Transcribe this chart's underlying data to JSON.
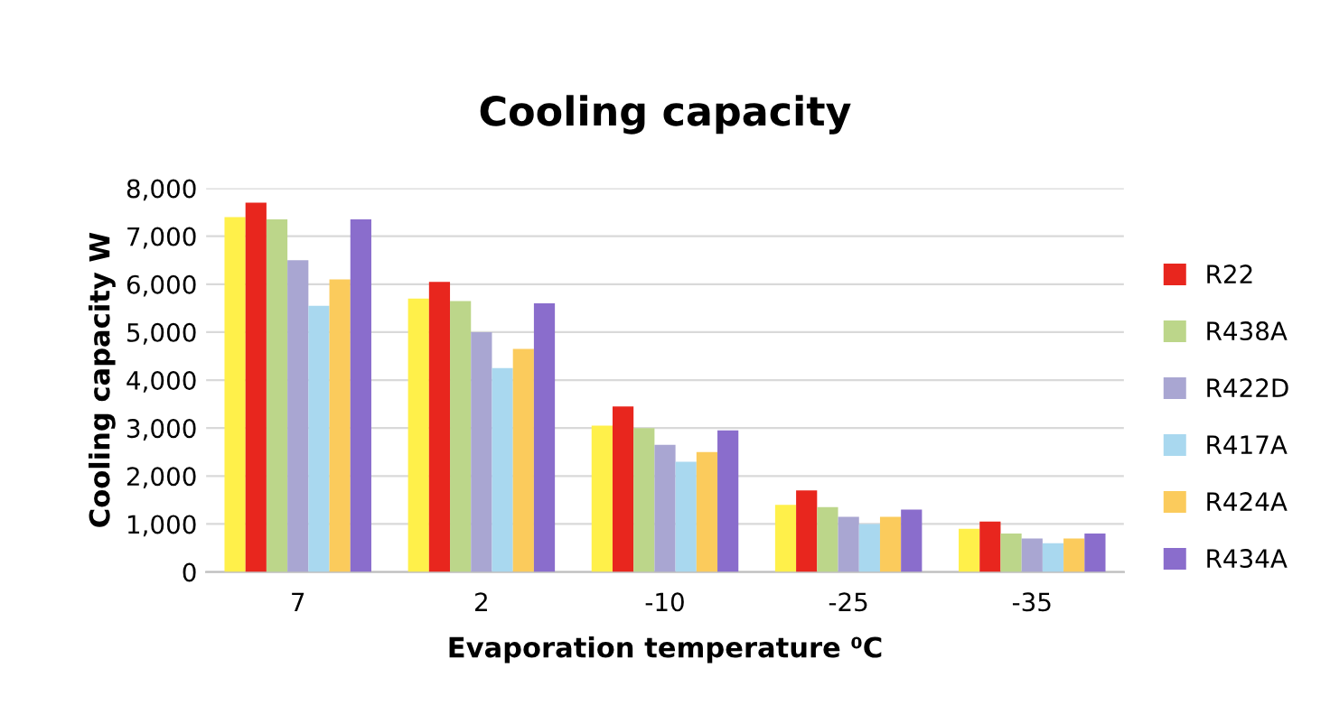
{
  "chart_data": {
    "type": "bar",
    "title": "Cooling capacity",
    "xlabel": "Evaporation temperature ⁰C",
    "ylabel": "Cooling capacity W",
    "categories": [
      "7",
      "2",
      "-10",
      "-25",
      "-35"
    ],
    "series": [
      {
        "color": "#fff04a",
        "values": [
          7400,
          5700,
          3050,
          1400,
          900
        ]
      },
      {
        "name": "R22",
        "color": "#e8261e",
        "values": [
          7700,
          6050,
          3450,
          1700,
          1050
        ]
      },
      {
        "name": "R438A",
        "color": "#bcd68a",
        "values": [
          7350,
          5650,
          3000,
          1350,
          800
        ]
      },
      {
        "name": "R422D",
        "color": "#a9a6d2",
        "values": [
          6500,
          5000,
          2650,
          1150,
          700
        ]
      },
      {
        "name": "R417A",
        "color": "#a9d8ef",
        "values": [
          5550,
          4250,
          2300,
          1000,
          600
        ]
      },
      {
        "name": "R424A",
        "color": "#fbcb5c",
        "values": [
          6100,
          4650,
          2500,
          1150,
          700
        ]
      },
      {
        "name": "R434A",
        "color": "#8a6dcc",
        "values": [
          7350,
          5600,
          2950,
          1300,
          800
        ]
      }
    ],
    "ylim": [
      0,
      8000
    ],
    "yticks": [
      0,
      {
        "value": 1000,
        "label": "1,000"
      },
      {
        "value": 2000,
        "label": "2,000"
      },
      {
        "value": 3000,
        "label": "3,000"
      },
      {
        "value": 4000,
        "label": "4,000"
      },
      {
        "value": 5000,
        "label": "5,000"
      },
      {
        "value": 6000,
        "label": "6,000"
      },
      {
        "value": 7000,
        "label": "7,000"
      },
      {
        "value": 8000,
        "label": "8,000"
      }
    ],
    "grid": "y",
    "legend": "right"
  }
}
